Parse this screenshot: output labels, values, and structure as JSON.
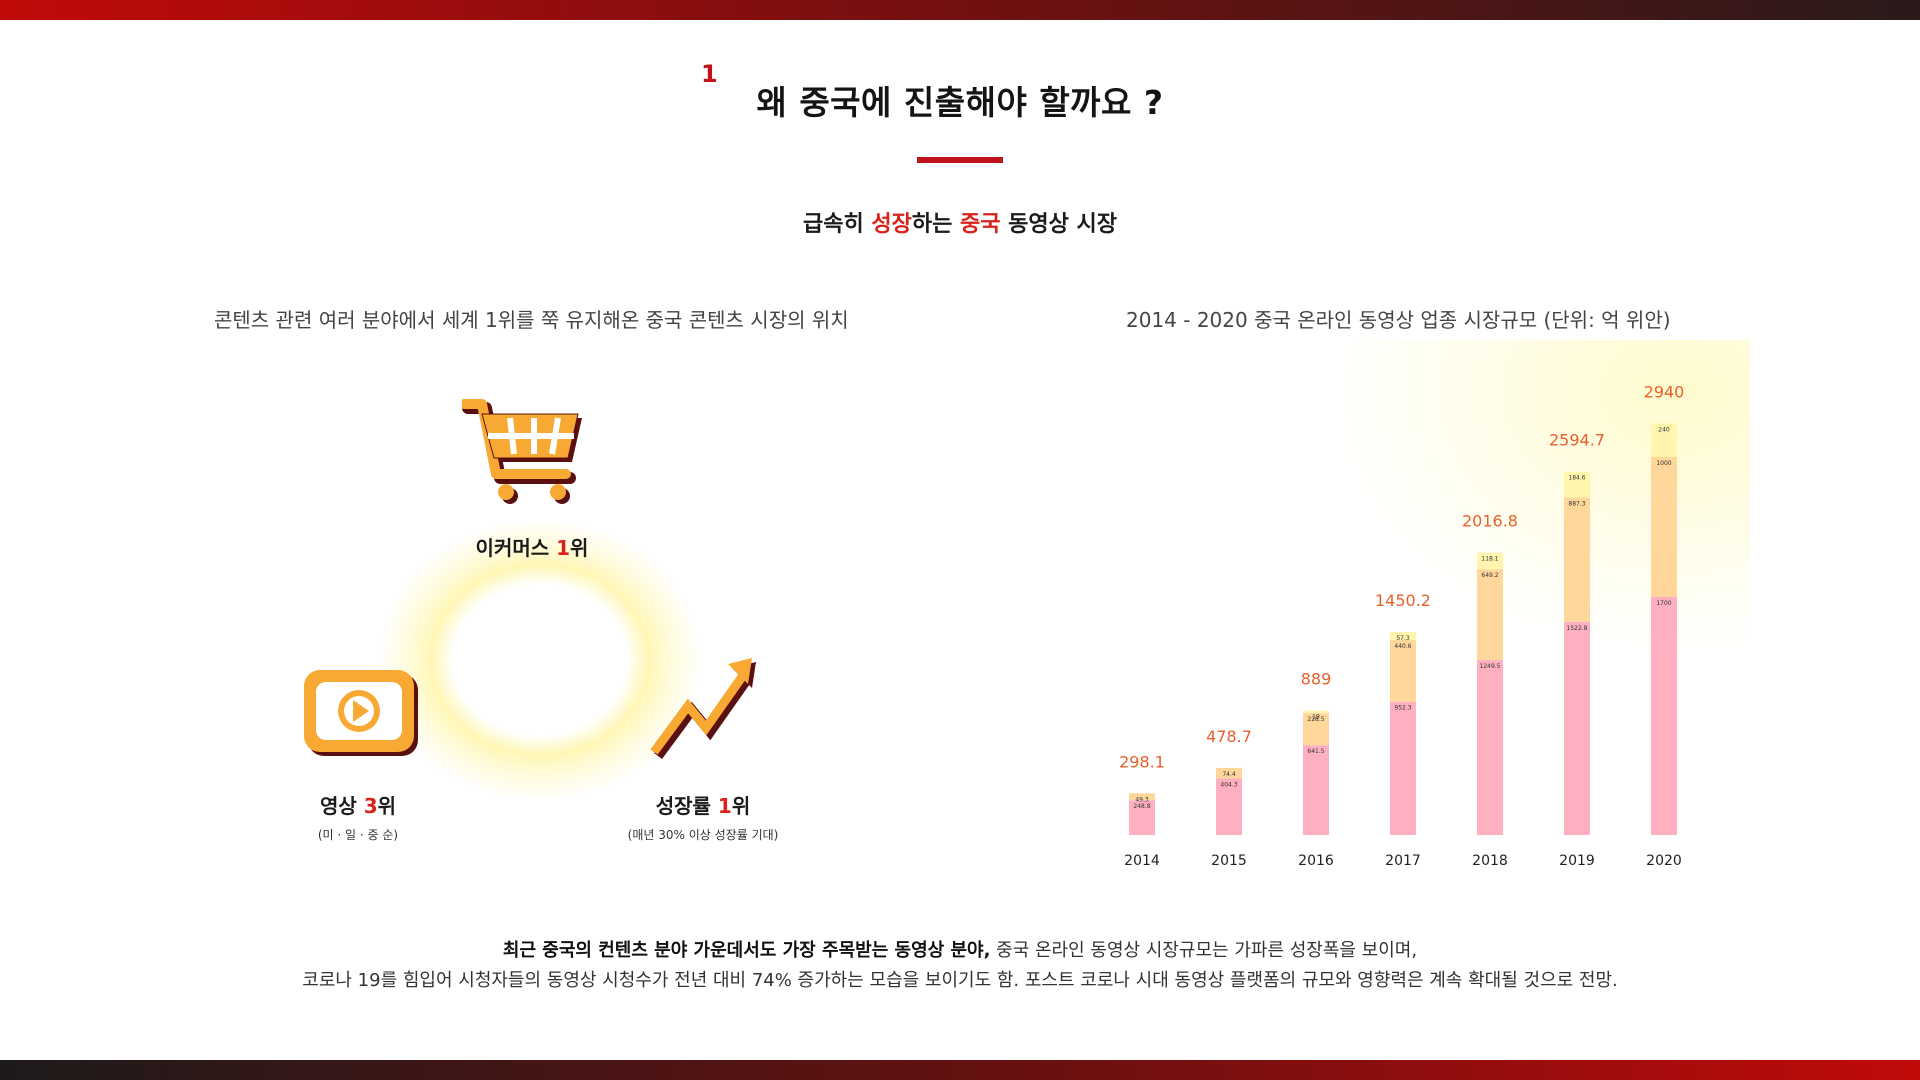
{
  "header": {
    "section_number": "1",
    "title": "왜 중국에 진출해야 할까요 ?",
    "subtitle_parts": [
      "급속히 ",
      "성장",
      "하는 ",
      "중국",
      " 동영상 시장"
    ]
  },
  "left": {
    "caption": "콘텐츠 관련 여러 분야에서 세계 1위를 쭉 유지해온 중국 콘텐츠 시장의 위치",
    "items": [
      {
        "icon": "shopping-cart-icon",
        "label_prefix": "이커머스 ",
        "rank": "1",
        "label_suffix": "위",
        "sub": ""
      },
      {
        "icon": "video-play-icon",
        "label_prefix": "영상 ",
        "rank": "3",
        "label_suffix": "위",
        "sub": "(미 · 일 · 중 순)"
      },
      {
        "icon": "growth-arrow-icon",
        "label_prefix": "성장률 ",
        "rank": "1",
        "label_suffix": "위",
        "sub": "(매년 30% 이상 성장률 기대)"
      }
    ]
  },
  "right": {
    "caption": "2014 - 2020 중국 온라인 동영상 업종 시장규모 (단위: 억 위안)"
  },
  "chart_data": {
    "type": "bar",
    "stacked": true,
    "categories": [
      "2014",
      "2015",
      "2016",
      "2017",
      "2018",
      "2019",
      "2020"
    ],
    "totals": [
      "298.1",
      "478.7",
      "889",
      "1450.2",
      "2016.8",
      "2594.7",
      "2940"
    ],
    "series": [
      {
        "color": "#ffb0c0",
        "values": [
          248.8,
          404.3,
          641.5,
          952.3,
          1249.5,
          1522.8,
          1700
        ],
        "labels": [
          "248.8",
          "404.3",
          "641.5",
          "952.3",
          "1249.5",
          "1522.8",
          "1700"
        ]
      },
      {
        "color": "#ffd79a",
        "values": [
          49.3,
          74.4,
          228.5,
          440.6,
          649.2,
          887.3,
          1000
        ],
        "labels": [
          "49.3",
          "74.4",
          "228.5",
          "440.6",
          "649.2",
          "887.3",
          "1000"
        ]
      },
      {
        "color": "#fff5ad",
        "values": [
          0,
          0,
          19,
          57.3,
          118.1,
          184.6,
          240
        ],
        "labels": [
          "",
          "",
          "19",
          "57.3",
          "118.1",
          "184.6",
          "240"
        ]
      }
    ],
    "ylim": [
      0,
      3000
    ],
    "grid": false,
    "colors": {
      "total_label": "#e8602c",
      "axis_label": "#222222"
    }
  },
  "footer": {
    "line1_bold": "최근 중국의 컨텐츠 분야 가운데서도 가장 주목받는 ",
    "line1_red": "동영상",
    "line1_bold2": " 분야,",
    "line1_rest": " 중국 온라인 동영상 시장규모는 가파른 성장폭을 보이며,",
    "line2": "코로나 19를 힘입어 시청자들의 동영상 시청수가 전년 대비 74% 증가하는 모습을 보이기도 함. 포스트 코로나 시대 동영상 플랫폼의 규모와 영향력은 계속 확대될 것으로 전망."
  },
  "colors": {
    "accent": "#c0121b",
    "highlight": "#d8231b",
    "icon_fill": "#f7a934",
    "icon_outline": "#5a1010"
  }
}
